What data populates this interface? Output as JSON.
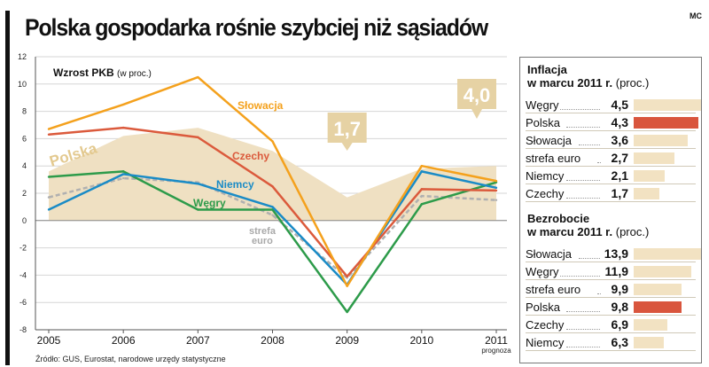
{
  "header": {
    "title": "Polska gospodarka rośnie szybciej niż sąsiadów",
    "credit": "MC"
  },
  "source": "Źródło: GUS, Eurostat, narodowe urzędy statystyczne",
  "colors": {
    "poland_area": "#efe0c2",
    "slovakia": "#f4a11d",
    "czech": "#db5a3c",
    "germany": "#1a8bc6",
    "hungary": "#2d9b4a",
    "eurozone": "#b0b0b0",
    "callout": "#e6d2a4",
    "bar": "#f2e2c2",
    "bar_highlight": "#d9553d"
  },
  "chart_data": {
    "type": "line",
    "title": "Wzrost PKB",
    "title_unit": "(w proc.)",
    "categories": [
      "2005",
      "2006",
      "2007",
      "2008",
      "2009",
      "2010",
      "2011"
    ],
    "x_sublabels": [
      "",
      "",
      "",
      "",
      "",
      "",
      "prognoza"
    ],
    "ylim": [
      -8,
      12
    ],
    "yticks": [
      -8,
      -6,
      -4,
      -2,
      0,
      2,
      4,
      6,
      8,
      10,
      12
    ],
    "grid": true,
    "series": [
      {
        "name": "Polska",
        "kind": "area",
        "values": [
          3.6,
          6.2,
          6.8,
          5.1,
          1.7,
          3.8,
          4.0
        ]
      },
      {
        "name": "strefa euro",
        "kind": "dashed",
        "values": [
          1.7,
          3.1,
          2.8,
          0.4,
          -4.2,
          1.8,
          1.5
        ]
      },
      {
        "name": "Węgry",
        "values": [
          3.2,
          3.6,
          0.8,
          0.8,
          -6.7,
          1.2,
          2.8
        ]
      },
      {
        "name": "Niemcy",
        "values": [
          0.8,
          3.4,
          2.7,
          1.0,
          -4.7,
          3.6,
          2.4
        ]
      },
      {
        "name": "Czechy",
        "values": [
          6.3,
          6.8,
          6.1,
          2.5,
          -4.1,
          2.3,
          2.2
        ]
      },
      {
        "name": "Słowacja",
        "values": [
          6.7,
          8.5,
          10.5,
          5.8,
          -4.8,
          4.0,
          2.9
        ]
      }
    ],
    "annotations": [
      {
        "label": "Polska"
      },
      {
        "label": "Słowacja"
      },
      {
        "label": "Czechy"
      },
      {
        "label": "Niemcy"
      },
      {
        "label": "Węgry"
      },
      {
        "label_line1": "strefa",
        "label_line2": "euro"
      },
      {
        "callout": "1,7"
      },
      {
        "callout": "4,0"
      }
    ]
  },
  "inflation": {
    "title": "Inflacja",
    "title2": "w marcu 2011 r.",
    "unit": "(proc.)",
    "rows": [
      {
        "label": "Węgry",
        "value": "4,5",
        "num": 4.5,
        "highlight": false
      },
      {
        "label": "Polska",
        "value": "4,3",
        "num": 4.3,
        "highlight": true
      },
      {
        "label": "Słowacja",
        "value": "3,6",
        "num": 3.6,
        "highlight": false
      },
      {
        "label": "strefa euro",
        "value": "2,7",
        "num": 2.7,
        "highlight": false
      },
      {
        "label": "Niemcy",
        "value": "2,1",
        "num": 2.1,
        "highlight": false
      },
      {
        "label": "Czechy",
        "value": "1,7",
        "num": 1.7,
        "highlight": false
      }
    ]
  },
  "unemployment": {
    "title": "Bezrobocie",
    "title2": "w marcu 2011 r.",
    "unit": "(proc.)",
    "rows": [
      {
        "label": "Słowacja",
        "value": "13,9",
        "num": 13.9,
        "highlight": false
      },
      {
        "label": "Węgry",
        "value": "11,9",
        "num": 11.9,
        "highlight": false
      },
      {
        "label": "strefa euro",
        "value": "9,9",
        "num": 9.9,
        "highlight": false
      },
      {
        "label": "Polska",
        "value": "9,8",
        "num": 9.8,
        "highlight": true
      },
      {
        "label": "Czechy",
        "value": "6,9",
        "num": 6.9,
        "highlight": false
      },
      {
        "label": "Niemcy",
        "value": "6,3",
        "num": 6.3,
        "highlight": false
      }
    ]
  }
}
